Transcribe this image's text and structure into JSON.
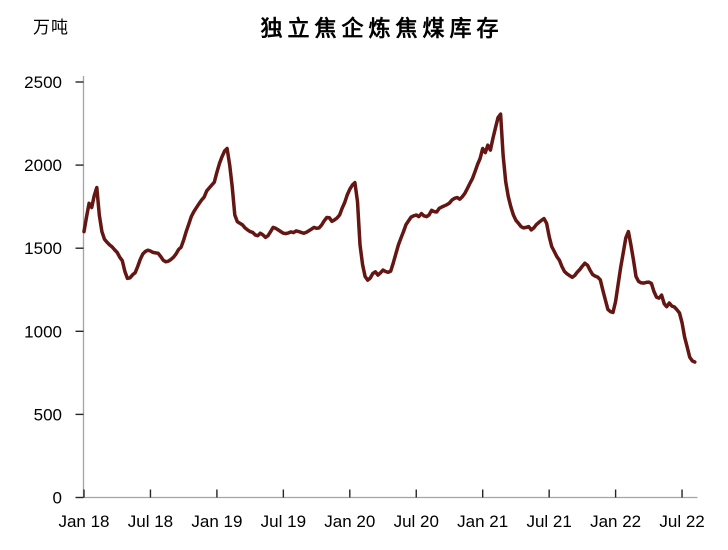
{
  "page": {
    "background": "#ffffff"
  },
  "header": {
    "unit_label": "万吨",
    "title": "独立焦企炼焦煤库存"
  },
  "chart_data": {
    "type": "line",
    "title": "独立焦企炼焦煤库存",
    "xlabel": "",
    "ylabel": "万吨",
    "ylim": [
      0,
      2500
    ],
    "y_ticks": [
      0,
      500,
      1000,
      1500,
      2000,
      2500
    ],
    "x_tick_labels": [
      "Jan 18",
      "Jul 18",
      "Jan 19",
      "Jul 19",
      "Jan 20",
      "Jul 20",
      "Jan 21",
      "Jul 21",
      "Jan 22",
      "Jul 22"
    ],
    "points_per_x_tick": 26,
    "grid": false,
    "legend_position": "none",
    "series": [
      {
        "name": "独立焦企炼焦煤库存",
        "frequency": "weekly",
        "color": "#641613",
        "values": [
          1600,
          1690,
          1770,
          1745,
          1815,
          1865,
          1700,
          1600,
          1555,
          1536,
          1520,
          1508,
          1490,
          1474,
          1445,
          1425,
          1360,
          1318,
          1322,
          1340,
          1352,
          1390,
          1432,
          1465,
          1480,
          1488,
          1483,
          1475,
          1472,
          1470,
          1450,
          1428,
          1418,
          1422,
          1432,
          1446,
          1465,
          1492,
          1506,
          1550,
          1600,
          1645,
          1690,
          1720,
          1745,
          1768,
          1790,
          1807,
          1845,
          1862,
          1880,
          1897,
          1957,
          2010,
          2050,
          2085,
          2100,
          2000,
          1870,
          1700,
          1660,
          1650,
          1640,
          1622,
          1610,
          1600,
          1595,
          1580,
          1575,
          1590,
          1580,
          1565,
          1575,
          1600,
          1625,
          1620,
          1610,
          1600,
          1590,
          1588,
          1592,
          1598,
          1594,
          1604,
          1600,
          1595,
          1590,
          1596,
          1605,
          1615,
          1625,
          1620,
          1622,
          1640,
          1665,
          1685,
          1683,
          1662,
          1670,
          1682,
          1700,
          1740,
          1775,
          1820,
          1855,
          1880,
          1895,
          1780,
          1520,
          1400,
          1330,
          1308,
          1320,
          1348,
          1358,
          1338,
          1352,
          1368,
          1360,
          1355,
          1362,
          1410,
          1465,
          1520,
          1560,
          1600,
          1642,
          1665,
          1687,
          1695,
          1700,
          1690,
          1708,
          1695,
          1690,
          1700,
          1728,
          1720,
          1718,
          1740,
          1748,
          1755,
          1762,
          1772,
          1790,
          1800,
          1805,
          1795,
          1810,
          1830,
          1860,
          1890,
          1920,
          1960,
          2005,
          2040,
          2100,
          2075,
          2120,
          2090,
          2160,
          2225,
          2285,
          2307,
          2060,
          1900,
          1810,
          1750,
          1700,
          1668,
          1650,
          1630,
          1622,
          1625,
          1630,
          1610,
          1622,
          1642,
          1655,
          1668,
          1678,
          1650,
          1570,
          1510,
          1480,
          1450,
          1428,
          1390,
          1360,
          1346,
          1335,
          1325,
          1336,
          1356,
          1372,
          1392,
          1410,
          1398,
          1368,
          1342,
          1332,
          1326,
          1310,
          1248,
          1188,
          1132,
          1118,
          1114,
          1180,
          1285,
          1385,
          1475,
          1562,
          1600,
          1520,
          1428,
          1330,
          1300,
          1292,
          1290,
          1294,
          1296,
          1288,
          1240,
          1206,
          1200,
          1218,
          1166,
          1148,
          1170,
          1152,
          1146,
          1130,
          1110,
          1050,
          965,
          905,
          845,
          822,
          815
        ]
      }
    ]
  },
  "style": {
    "line_color": "#641613",
    "axis_color": "#a3a3a3",
    "tick_color": "#262626",
    "text_color": "#000000"
  }
}
